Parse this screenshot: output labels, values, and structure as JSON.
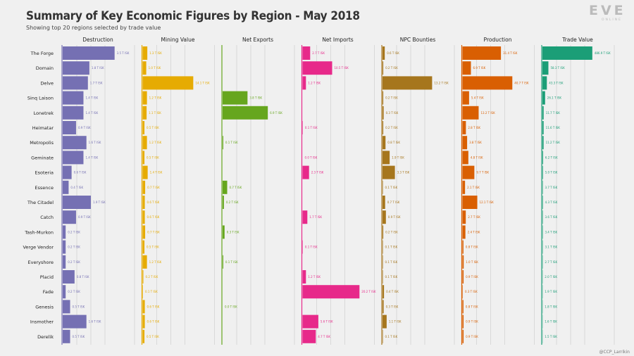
{
  "title": "Summary of Key Economic Figures by Region - May 2018",
  "subtitle": "Showing top 20 regions selected by trade value",
  "logo": {
    "main": "EVE",
    "sub": "ONLINE"
  },
  "credit": "@CCP_Larrikin",
  "chart_data": {
    "type": "bar",
    "orientation": "horizontal",
    "title": "Summary of Key Economic Figures by Region - May 2018",
    "subtitle": "Showing top 20 regions selected by trade value",
    "categories": [
      "The Forge",
      "Domain",
      "Delve",
      "Sinq Laison",
      "Lonetrek",
      "Heimatar",
      "Metropolis",
      "Geminate",
      "Esoteria",
      "Essence",
      "The Citadel",
      "Catch",
      "Tash-Murkon",
      "Verge Vendor",
      "Everyshore",
      "Placid",
      "Fade",
      "Genesis",
      "Insmother",
      "Derelik"
    ],
    "series": [
      {
        "name": "Destruction",
        "color": "#7570b3",
        "max": 3.8,
        "values": [
          3.5,
          1.8,
          1.7,
          1.4,
          1.4,
          0.9,
          1.6,
          1.4,
          0.6,
          0.4,
          1.9,
          0.9,
          0.2,
          0.2,
          0.2,
          0.8,
          0.2,
          0.5,
          1.6,
          0.5
        ],
        "labels": [
          "3.5 T ISK",
          "1.8 T ISK",
          "1.7 T ISK",
          "1.4 T ISK",
          "1.4 T ISK",
          "0.9 T ISK",
          "1.6 T ISK",
          "1.4 T ISK",
          "0.6 T ISK",
          "0.4 T ISK",
          "1.9 T ISK",
          "0.9 T ISK",
          "0.2 T ISK",
          "0.2 T ISK",
          "0.2 T ISK",
          "0.8 T ISK",
          "0.2 T ISK",
          "0.5 T ISK",
          "1.6 T ISK",
          "0.5 T ISK"
        ]
      },
      {
        "name": "Mining Value",
        "color": "#e6ab02",
        "max": 15.7,
        "values": [
          1.3,
          1.0,
          14.1,
          1.2,
          1.1,
          0.5,
          1.2,
          0.5,
          1.4,
          0.7,
          0.6,
          0.6,
          0.7,
          0.5,
          1.2,
          0.2,
          0.1,
          0.6,
          0.6,
          0.5
        ],
        "labels": [
          "1.3 T ISK",
          "1.0 T ISK",
          "14.1 T ISK",
          "1.2 T ISK",
          "1.1 T ISK",
          "0.5 T ISK",
          "1.2 T ISK",
          "0.5 T ISK",
          "1.4 T ISK",
          "0.7 T ISK",
          "0.6 T ISK",
          "0.6 T ISK",
          "0.7 T ISK",
          "0.5 T ISK",
          "1.2 T ISK",
          "0.2 T ISK",
          "0.1 T ISK",
          "0.6 T ISK",
          "0.6 T ISK",
          "0.5 T ISK"
        ]
      },
      {
        "name": "Net Exports",
        "color": "#66a61e",
        "max": 8.6,
        "values": [
          0,
          0,
          0,
          3.8,
          6.9,
          0,
          0.1,
          0,
          0,
          0.7,
          0.2,
          0,
          0.3,
          0,
          0.1,
          0,
          0,
          0.0,
          0,
          0
        ],
        "labels": [
          "",
          "",
          "",
          "3.8 T ISK",
          "6.9 T ISK",
          "",
          "0.1 T ISK",
          "",
          "",
          "0.7 T ISK",
          "0.2 T ISK",
          "",
          "0.3 T ISK",
          "",
          "0.1 T ISK",
          "",
          "",
          "0.0 T ISK",
          "",
          ""
        ]
      },
      {
        "name": "Net Imports",
        "color": "#e7298a",
        "max": 20.0,
        "values": [
          2.7,
          10.5,
          1.2,
          0,
          0,
          0.1,
          0,
          0.0,
          2.3,
          0,
          0,
          1.7,
          0,
          0.1,
          0,
          1.2,
          20.2,
          0,
          5.6,
          4.7
        ],
        "labels": [
          "2.7 T ISK",
          "10.5 T ISK",
          "1.2 T ISK",
          "",
          "",
          "0.1 T ISK",
          "",
          "0.0 T ISK",
          "2.3 T ISK",
          "",
          "",
          "1.7 T ISK",
          "",
          "0.1 T ISK",
          "",
          "1.2 T ISK",
          "20.2 T ISK",
          "",
          "5.6 T ISK",
          "4.7 T ISK"
        ]
      },
      {
        "name": "NPC Bounties",
        "color": "#a6761d",
        "max": 15.0,
        "values": [
          0.6,
          0.2,
          13.2,
          0.2,
          0.3,
          0.2,
          0.8,
          1.9,
          3.3,
          0.1,
          0.7,
          0.9,
          0.2,
          0.1,
          0.1,
          0.1,
          0.4,
          0.3,
          1.1,
          0.1
        ],
        "labels": [
          "0.6 T ISK",
          "0.2 T ISK",
          "13.2 T ISK",
          "0.2 T ISK",
          "0.3 T ISK",
          "0.2 T ISK",
          "0.8 T ISK",
          "1.9 T ISK",
          "3.3 T ISK",
          "0.1 T ISK",
          "0.7 T ISK",
          "0.9 T ISK",
          "0.2 T ISK",
          "0.1 T ISK",
          "0.1 T ISK",
          "0.1 T ISK",
          "0.4 T ISK",
          "0.3 T ISK",
          "1.1 T ISK",
          "0.1 T ISK"
        ]
      },
      {
        "name": "Production",
        "color": "#d95f02",
        "max": 46.0,
        "values": [
          31.4,
          6.9,
          40.7,
          5.4,
          13.2,
          2.8,
          3.8,
          4.8,
          9.7,
          2.1,
          12.1,
          2.7,
          2.4,
          0.8,
          1.0,
          0.9,
          0.3,
          0.8,
          0.9,
          0.9
        ],
        "labels": [
          "31.4 T ISK",
          "6.9 T ISK",
          "40.7 T ISK",
          "5.4 T ISK",
          "13.2 T ISK",
          "2.8 T ISK",
          "3.8 T ISK",
          "4.8 T ISK",
          "9.7 T ISK",
          "2.1 T ISK",
          "12.1 T ISK",
          "2.7 T ISK",
          "2.4 T ISK",
          "0.8 T ISK",
          "1.0 T ISK",
          "0.9 T ISK",
          "0.3 T ISK",
          "0.8 T ISK",
          "0.9 T ISK",
          "0.9 T ISK"
        ]
      },
      {
        "name": "Trade Value",
        "color": "#1b9e77",
        "max": 550.0,
        "values": [
          486.9,
          58.3,
          43.3,
          26.1,
          11.7,
          11.6,
          11.2,
          6.2,
          5.0,
          3.7,
          4.3,
          3.6,
          3.4,
          3.1,
          2.7,
          2.0,
          1.9,
          1.8,
          1.6,
          1.5
        ],
        "labels": [
          "486.9 T ISK",
          "58.3 T ISK",
          "43.3 T ISK",
          "26.1 T ISK",
          "11.7 T ISK",
          "11.6 T ISK",
          "11.2 T ISK",
          "6.2 T ISK",
          "5.0 T ISK",
          "3.7 T ISK",
          "4.3 T ISK",
          "3.6 T ISK",
          "3.4 T ISK",
          "3.1 T ISK",
          "2.7 T ISK",
          "2.0 T ISK",
          "1.9 T ISK",
          "1.8 T ISK",
          "1.6 T ISK",
          "1.5 T ISK"
        ]
      }
    ],
    "xlabel": "",
    "ylabel": ""
  }
}
